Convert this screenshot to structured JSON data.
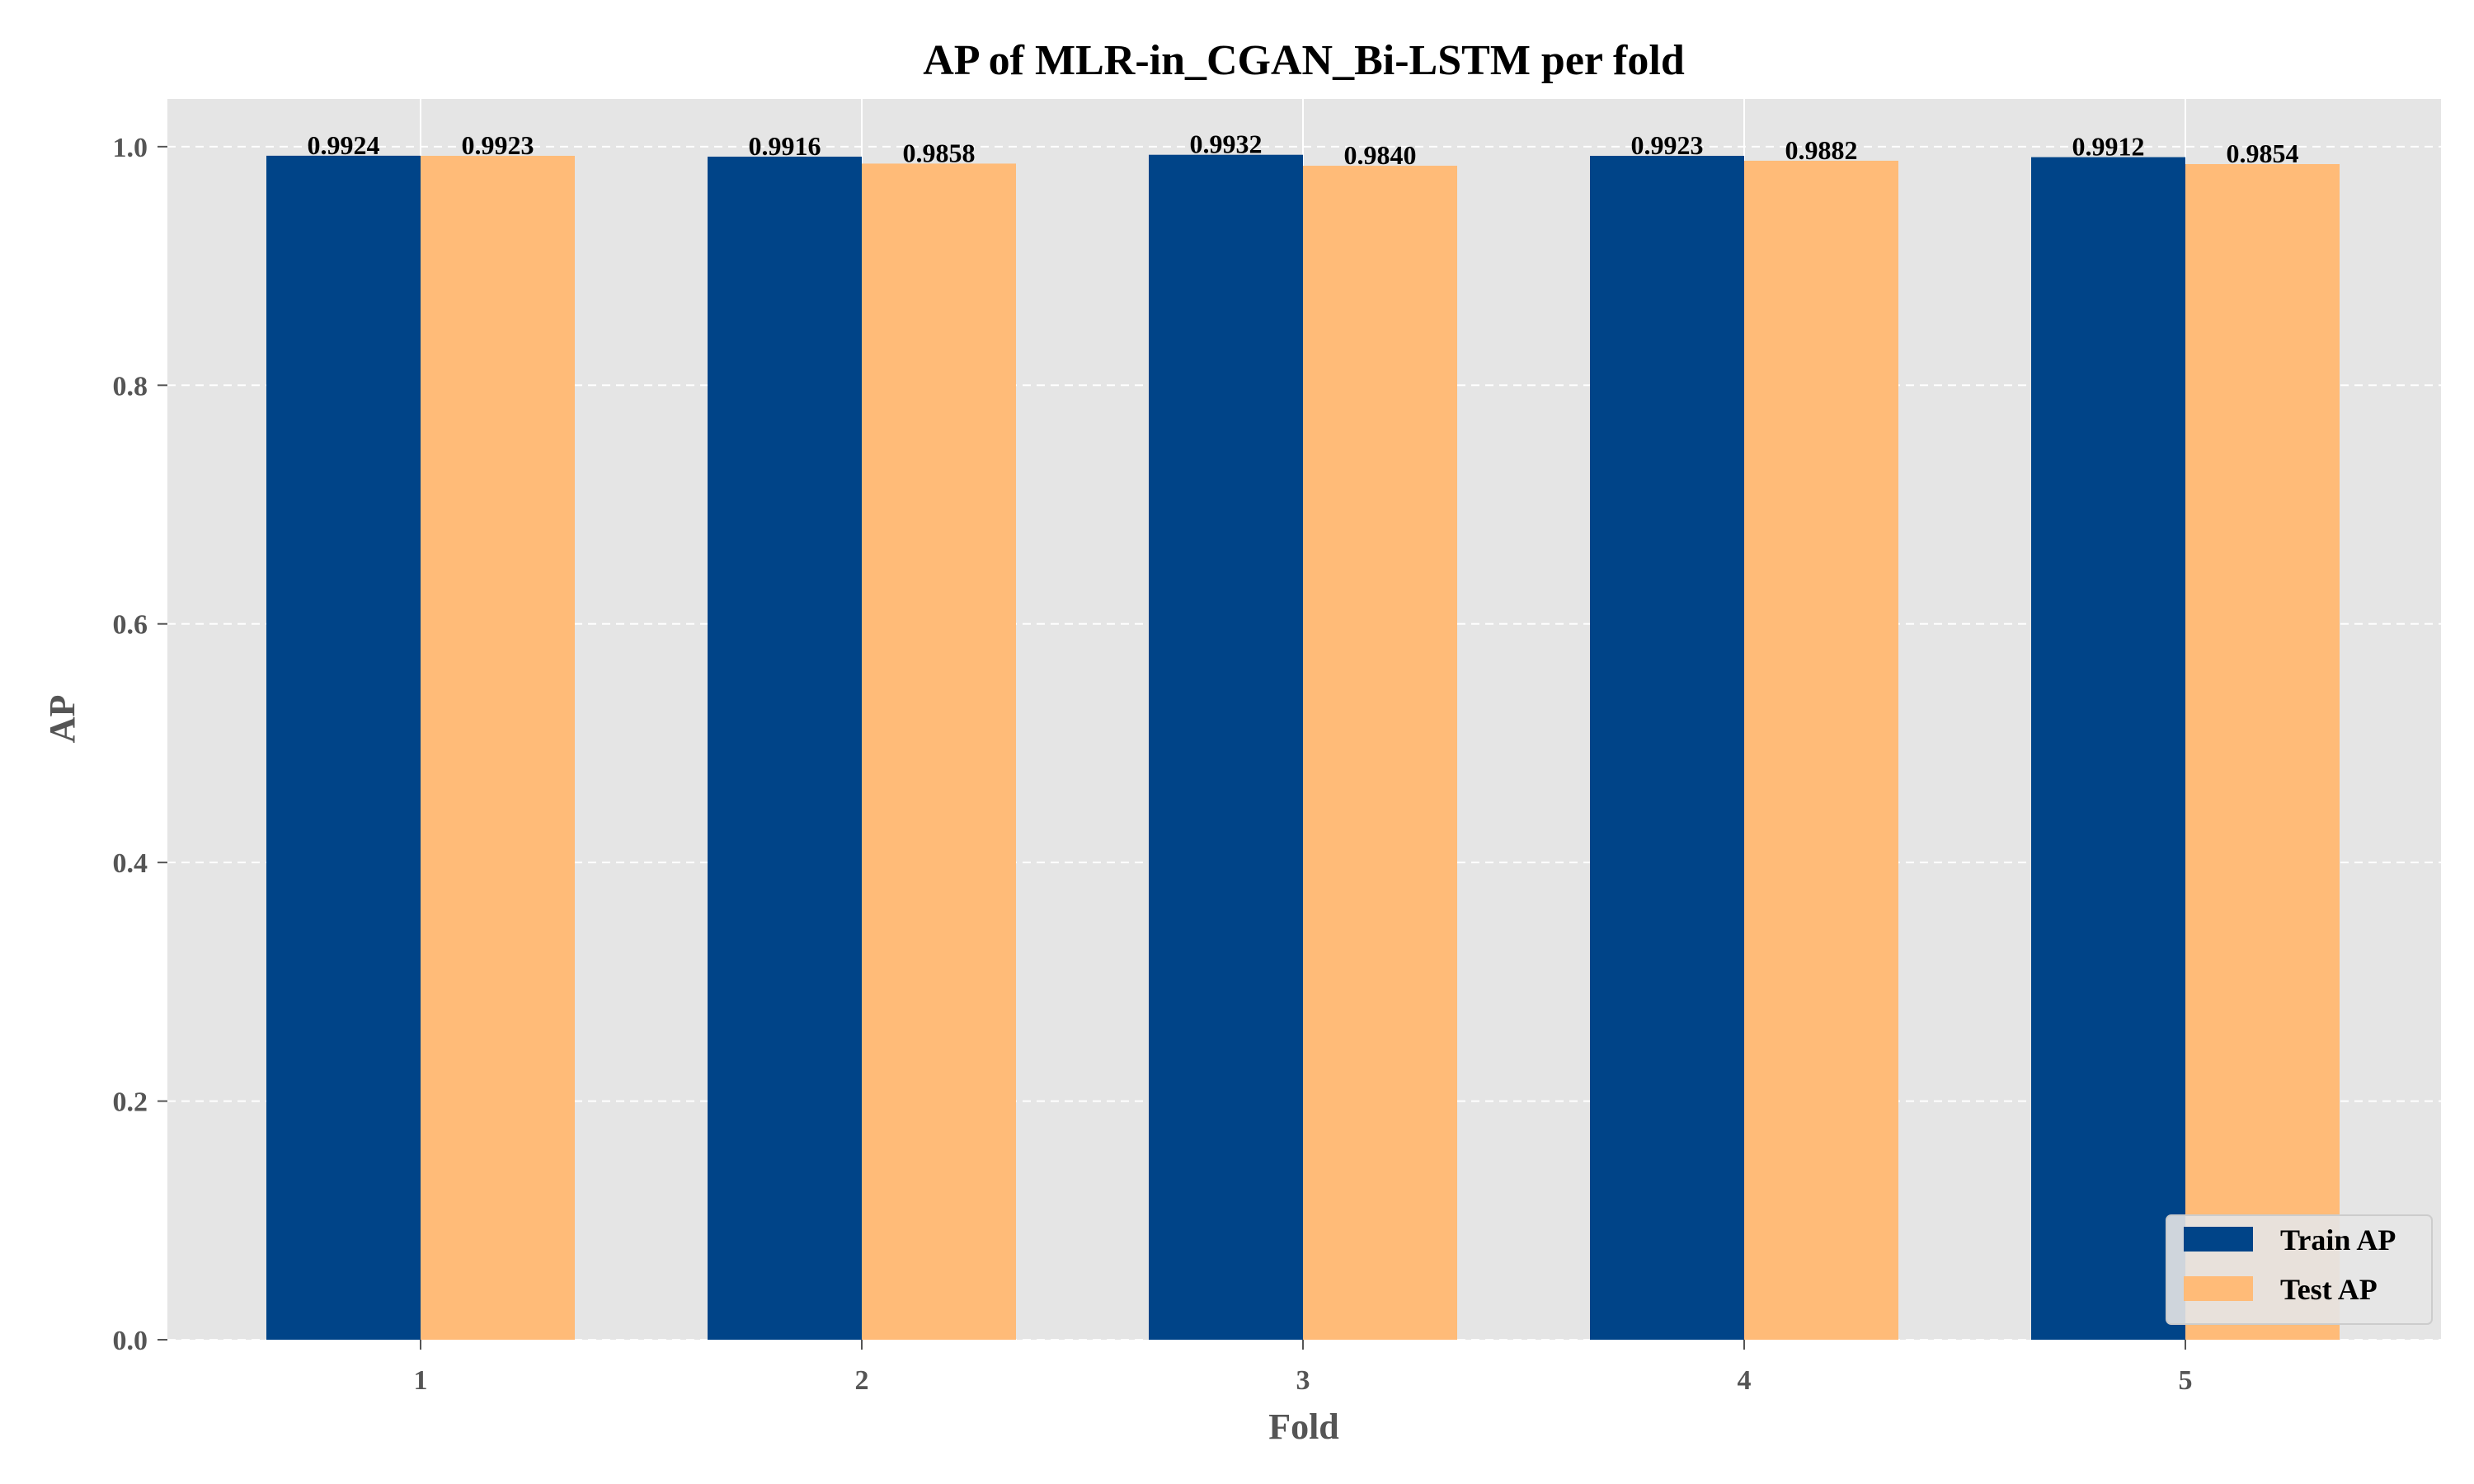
{
  "chart_data": {
    "type": "bar",
    "title": "AP of MLR-in_CGAN_Bi-LSTM per fold",
    "xlabel": "Fold",
    "ylabel": "AP",
    "categories": [
      "1",
      "2",
      "3",
      "4",
      "5"
    ],
    "series": [
      {
        "name": "Train AP",
        "color": "#004488",
        "values": [
          0.9924,
          0.9916,
          0.9932,
          0.9923,
          0.9912
        ],
        "labels": [
          "0.9924",
          "0.9916",
          "0.9932",
          "0.9923",
          "0.9912"
        ]
      },
      {
        "name": "Test AP",
        "color": "#FFBB78",
        "values": [
          0.9923,
          0.9858,
          0.984,
          0.9882,
          0.9854
        ],
        "labels": [
          "0.9923",
          "0.9858",
          "0.9840",
          "0.9882",
          "0.9854"
        ]
      }
    ],
    "ylim": [
      0,
      1.04
    ],
    "yticks": [
      0.0,
      0.2,
      0.4,
      0.6,
      0.8,
      1.0
    ],
    "ytick_labels": [
      "0.0",
      "0.2",
      "0.4",
      "0.6",
      "0.8",
      "1.0"
    ],
    "grid": true,
    "legend_position": "bottom-right",
    "plot_background": "#E5E5E5",
    "gridline_color": "#FFFFFF"
  }
}
